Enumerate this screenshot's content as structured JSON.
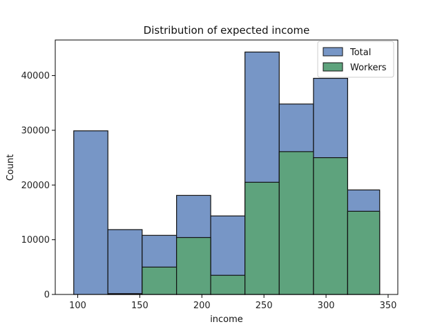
{
  "chart_data": {
    "type": "bar",
    "title": "Distribution of expected income",
    "xlabel": "income",
    "ylabel": "Count",
    "xlim": [
      81.9,
      357.8
    ],
    "ylim": [
      0,
      46500
    ],
    "x_ticks": [
      100,
      150,
      200,
      250,
      300,
      350
    ],
    "y_ticks": [
      0,
      10000,
      20000,
      30000,
      40000
    ],
    "bin_edges": [
      96.8,
      124.3,
      151.9,
      179.6,
      207.1,
      234.7,
      262.3,
      289.9,
      317.4,
      343.2
    ],
    "series": [
      {
        "name": "Total",
        "color": "#7796c6",
        "values": [
          29900,
          11850,
          10800,
          18100,
          14350,
          44300,
          34800,
          39500,
          19100
        ]
      },
      {
        "name": "Workers",
        "color": "#5ea37d",
        "values": [
          0,
          150,
          5000,
          10400,
          3500,
          20500,
          26100,
          25000,
          15200
        ]
      }
    ],
    "legend": {
      "position": "top-right"
    },
    "grid": false
  }
}
